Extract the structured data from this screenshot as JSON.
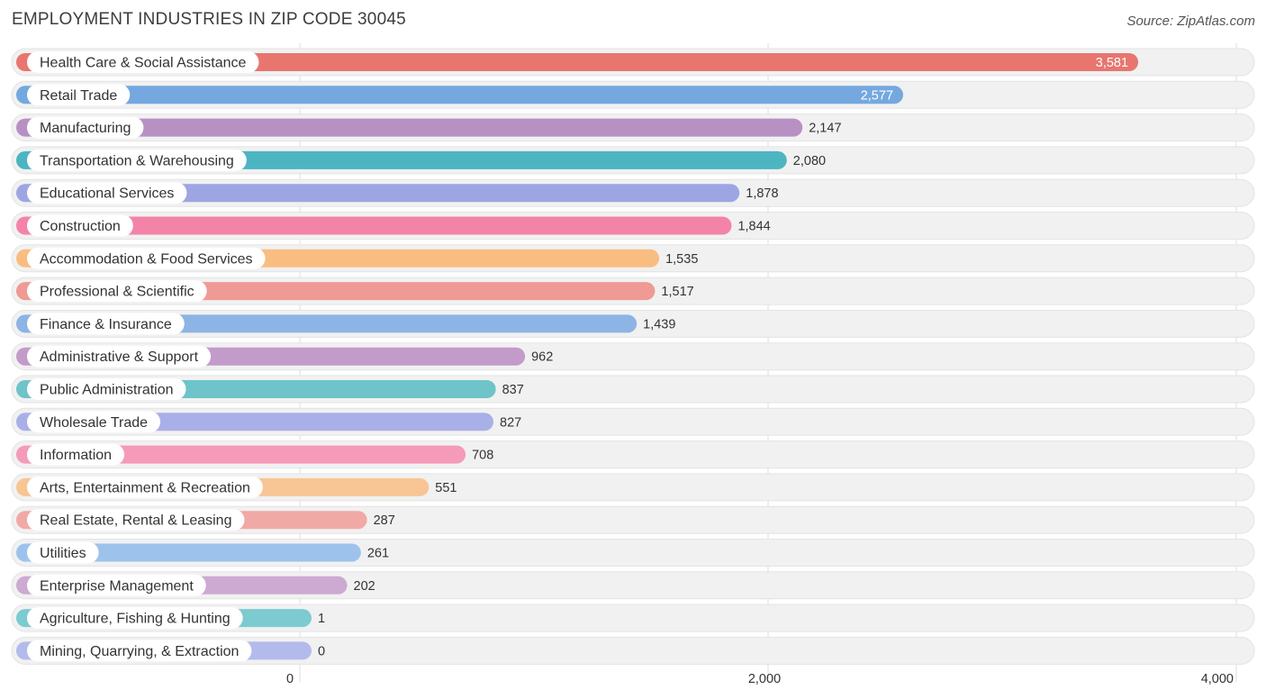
{
  "header": {
    "title": "EMPLOYMENT INDUSTRIES IN ZIP CODE 30045",
    "source": "Source: ZipAtlas.com"
  },
  "chart_data": {
    "type": "bar",
    "orientation": "horizontal",
    "title": "EMPLOYMENT INDUSTRIES IN ZIP CODE 30045",
    "xlabel": "",
    "ylabel": "",
    "xlim": [
      0,
      4000
    ],
    "xticks": [
      0,
      2000,
      4000
    ],
    "xtick_labels": [
      "0",
      "2,000",
      "4,000"
    ],
    "categories": [
      "Health Care & Social Assistance",
      "Retail Trade",
      "Manufacturing",
      "Transportation & Warehousing",
      "Educational Services",
      "Construction",
      "Accommodation & Food Services",
      "Professional & Scientific",
      "Finance & Insurance",
      "Administrative & Support",
      "Public Administration",
      "Wholesale Trade",
      "Information",
      "Arts, Entertainment & Recreation",
      "Real Estate, Rental & Leasing",
      "Utilities",
      "Enterprise Management",
      "Agriculture, Fishing & Hunting",
      "Mining, Quarrying, & Extraction"
    ],
    "values": [
      3581,
      2577,
      2147,
      2080,
      1878,
      1844,
      1535,
      1517,
      1439,
      962,
      837,
      827,
      708,
      551,
      287,
      261,
      202,
      1,
      0
    ],
    "value_labels": [
      "3,581",
      "2,577",
      "2,147",
      "2,080",
      "1,878",
      "1,844",
      "1,535",
      "1,517",
      "1,439",
      "962",
      "837",
      "827",
      "708",
      "551",
      "287",
      "261",
      "202",
      "1",
      "0"
    ],
    "colors": [
      "#e8766f",
      "#74a8df",
      "#b891c4",
      "#4db5c2",
      "#9da6e3",
      "#f483a8",
      "#f9bd81",
      "#ef9a94",
      "#8cb4e4",
      "#c39bca",
      "#6ec4c8",
      "#a9b0e8",
      "#f59ab9",
      "#f8c594",
      "#f1a9a5",
      "#9dc3ec",
      "#ccaad1",
      "#7ccbd0",
      "#b3bbec"
    ],
    "grid": true,
    "legend": "none"
  }
}
